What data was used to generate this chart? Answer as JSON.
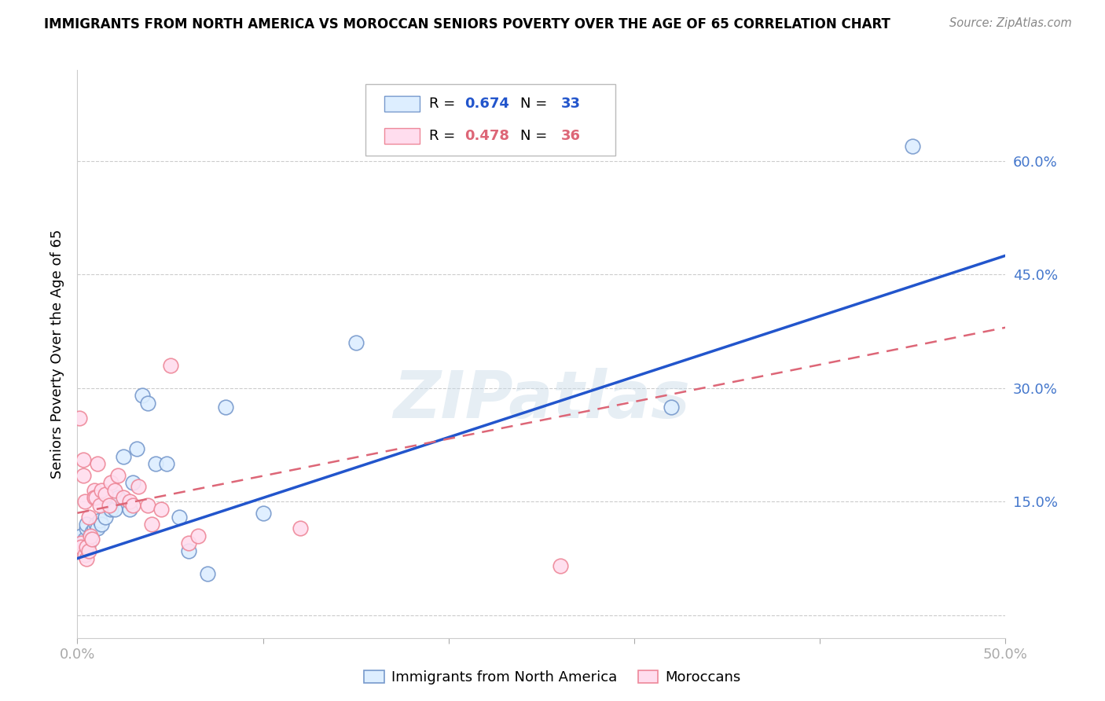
{
  "title": "IMMIGRANTS FROM NORTH AMERICA VS MOROCCAN SENIORS POVERTY OVER THE AGE OF 65 CORRELATION CHART",
  "source": "Source: ZipAtlas.com",
  "ylabel": "Seniors Poverty Over the Age of 65",
  "xlim": [
    0,
    0.5
  ],
  "ylim": [
    -0.03,
    0.72
  ],
  "ytick_values": [
    0.0,
    0.15,
    0.3,
    0.45,
    0.6
  ],
  "ytick_labels": [
    "",
    "15.0%",
    "30.0%",
    "45.0%",
    "60.0%"
  ],
  "xtick_values": [
    0.0,
    0.1,
    0.2,
    0.3,
    0.4,
    0.5
  ],
  "xtick_labels": [
    "0.0%",
    "",
    "",
    "",
    "",
    "50.0%"
  ],
  "blue_R": "0.674",
  "blue_N": "33",
  "pink_R": "0.478",
  "pink_N": "36",
  "blue_scatter_face": "#ddeeff",
  "blue_scatter_edge": "#7799cc",
  "pink_scatter_face": "#ffddee",
  "pink_scatter_edge": "#ee8899",
  "blue_line_color": "#2255cc",
  "pink_line_color": "#dd6677",
  "tick_color": "#4477cc",
  "watermark": "ZIPatlas",
  "legend_label_blue": "Immigrants from North America",
  "legend_label_pink": "Moroccans",
  "blue_x": [
    0.002,
    0.003,
    0.004,
    0.005,
    0.005,
    0.006,
    0.007,
    0.008,
    0.009,
    0.01,
    0.011,
    0.012,
    0.013,
    0.015,
    0.018,
    0.02,
    0.022,
    0.025,
    0.028,
    0.03,
    0.032,
    0.035,
    0.038,
    0.042,
    0.048,
    0.055,
    0.06,
    0.07,
    0.08,
    0.1,
    0.15,
    0.32,
    0.45
  ],
  "blue_y": [
    0.105,
    0.095,
    0.1,
    0.115,
    0.12,
    0.095,
    0.105,
    0.11,
    0.115,
    0.12,
    0.115,
    0.125,
    0.12,
    0.13,
    0.14,
    0.14,
    0.155,
    0.21,
    0.14,
    0.175,
    0.22,
    0.29,
    0.28,
    0.2,
    0.2,
    0.13,
    0.085,
    0.055,
    0.275,
    0.135,
    0.36,
    0.275,
    0.62
  ],
  "pink_x": [
    0.001,
    0.002,
    0.002,
    0.003,
    0.003,
    0.004,
    0.004,
    0.005,
    0.005,
    0.006,
    0.006,
    0.007,
    0.008,
    0.009,
    0.009,
    0.01,
    0.011,
    0.012,
    0.013,
    0.015,
    0.017,
    0.018,
    0.02,
    0.022,
    0.025,
    0.028,
    0.03,
    0.033,
    0.038,
    0.04,
    0.045,
    0.05,
    0.06,
    0.065,
    0.12,
    0.26
  ],
  "pink_y": [
    0.26,
    0.095,
    0.09,
    0.185,
    0.205,
    0.15,
    0.08,
    0.075,
    0.09,
    0.085,
    0.13,
    0.105,
    0.1,
    0.165,
    0.155,
    0.155,
    0.2,
    0.145,
    0.165,
    0.16,
    0.145,
    0.175,
    0.165,
    0.185,
    0.155,
    0.15,
    0.145,
    0.17,
    0.145,
    0.12,
    0.14,
    0.33,
    0.095,
    0.105,
    0.115,
    0.065
  ],
  "blue_trend_x": [
    0.0,
    0.5
  ],
  "blue_trend_y": [
    0.075,
    0.475
  ],
  "pink_trend_x": [
    0.0,
    0.5
  ],
  "pink_trend_y": [
    0.135,
    0.38
  ]
}
